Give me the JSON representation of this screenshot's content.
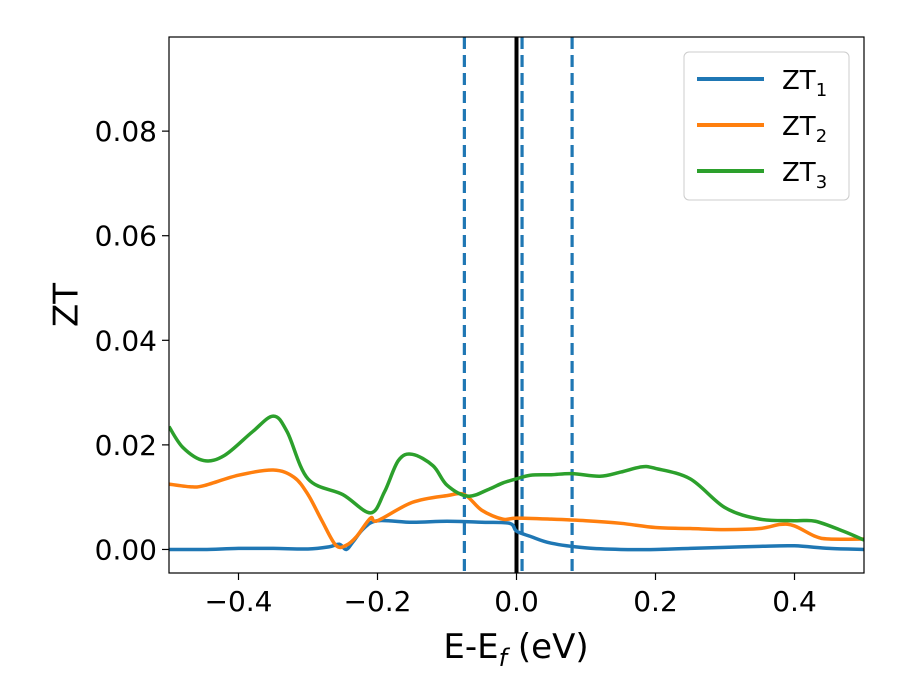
{
  "chart_data": {
    "type": "line",
    "title": "",
    "xlabel": "E-E",
    "xlabel_sub": "f",
    "xlabel_unit": " (eV)",
    "ylabel": "ZT",
    "xlim": [
      -0.5,
      0.5
    ],
    "ylim": [
      -0.0045,
      0.098
    ],
    "xticks": [
      -0.4,
      -0.2,
      0.0,
      0.2,
      0.4
    ],
    "xtick_labels": [
      "−0.4",
      "−0.2",
      "0.0",
      "0.2",
      "0.4"
    ],
    "yticks": [
      0.0,
      0.02,
      0.04,
      0.06,
      0.08
    ],
    "ytick_labels": [
      "0.00",
      "0.02",
      "0.04",
      "0.06",
      "0.08"
    ],
    "grid": false,
    "legend_position": "top-right",
    "vertical_lines": [
      {
        "x": 0.0,
        "color": "#000000",
        "style": "solid"
      },
      {
        "x": -0.075,
        "color": "#1f77b4",
        "style": "dashed"
      },
      {
        "x": 0.008,
        "color": "#1f77b4",
        "style": "dashed"
      },
      {
        "x": 0.08,
        "color": "#1f77b4",
        "style": "dashed"
      }
    ],
    "series": [
      {
        "name": "ZT",
        "name_sub": "1",
        "color": "#1f77b4",
        "x": [
          -0.5,
          -0.45,
          -0.4,
          -0.35,
          -0.3,
          -0.27,
          -0.255,
          -0.245,
          -0.235,
          -0.22,
          -0.2,
          -0.15,
          -0.1,
          -0.05,
          -0.01,
          0.0,
          0.02,
          0.05,
          0.1,
          0.15,
          0.2,
          0.25,
          0.3,
          0.35,
          0.4,
          0.45,
          0.5
        ],
        "y": [
          0.0,
          0.0,
          0.0002,
          0.0002,
          0.0001,
          0.0005,
          0.001,
          0.0,
          0.0015,
          0.004,
          0.0055,
          0.0052,
          0.0054,
          0.0052,
          0.005,
          0.0035,
          0.0025,
          0.0012,
          0.0003,
          0.0,
          0.0,
          0.0002,
          0.0004,
          0.0006,
          0.0007,
          0.0002,
          0.0
        ]
      },
      {
        "name": "ZT",
        "name_sub": "2",
        "color": "#ff7f0e",
        "x": [
          -0.5,
          -0.47,
          -0.45,
          -0.4,
          -0.35,
          -0.32,
          -0.3,
          -0.28,
          -0.26,
          -0.245,
          -0.23,
          -0.21,
          -0.2,
          -0.15,
          -0.1,
          -0.075,
          -0.05,
          -0.02,
          0.0,
          0.05,
          0.1,
          0.15,
          0.2,
          0.25,
          0.3,
          0.35,
          0.38,
          0.4,
          0.43,
          0.45,
          0.5
        ],
        "y": [
          0.0125,
          0.012,
          0.0122,
          0.0142,
          0.0152,
          0.0138,
          0.0105,
          0.0055,
          0.0008,
          0.0008,
          0.0025,
          0.006,
          0.0055,
          0.009,
          0.0103,
          0.0105,
          0.0075,
          0.0058,
          0.006,
          0.0058,
          0.0055,
          0.005,
          0.0042,
          0.004,
          0.0038,
          0.004,
          0.0048,
          0.0045,
          0.0025,
          0.002,
          0.002
        ]
      },
      {
        "name": "ZT",
        "name_sub": "3",
        "color": "#2ca02c",
        "x": [
          -0.5,
          -0.48,
          -0.45,
          -0.42,
          -0.38,
          -0.35,
          -0.33,
          -0.3,
          -0.25,
          -0.21,
          -0.19,
          -0.17,
          -0.15,
          -0.12,
          -0.1,
          -0.07,
          -0.04,
          -0.02,
          0.0,
          0.02,
          0.05,
          0.08,
          0.12,
          0.15,
          0.18,
          0.2,
          0.25,
          0.3,
          0.35,
          0.4,
          0.43,
          0.47,
          0.5
        ],
        "y": [
          0.0235,
          0.0195,
          0.017,
          0.018,
          0.0225,
          0.0255,
          0.0225,
          0.0135,
          0.0105,
          0.007,
          0.011,
          0.017,
          0.0182,
          0.016,
          0.0123,
          0.0102,
          0.0115,
          0.0127,
          0.0135,
          0.0142,
          0.0143,
          0.0145,
          0.014,
          0.0148,
          0.0158,
          0.0155,
          0.0135,
          0.008,
          0.0058,
          0.0055,
          0.0054,
          0.0035,
          0.0018
        ]
      }
    ]
  }
}
